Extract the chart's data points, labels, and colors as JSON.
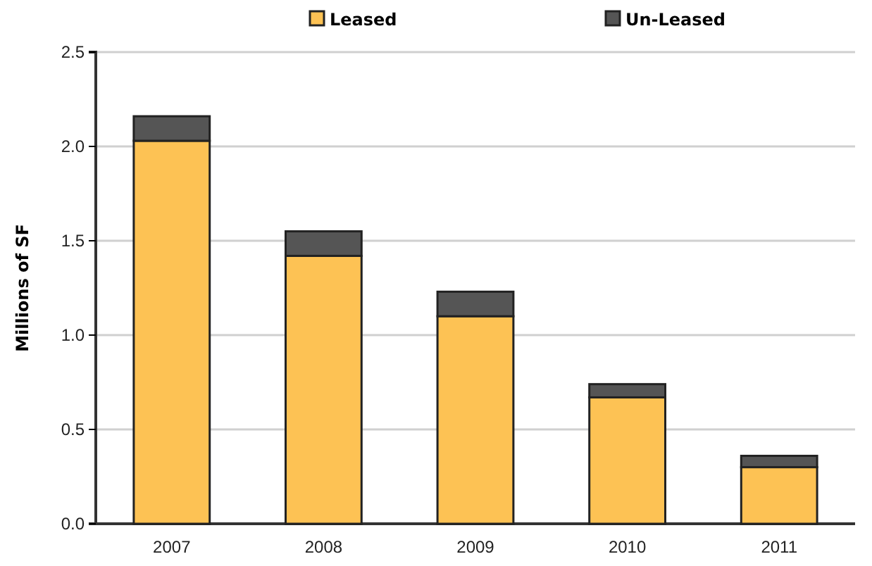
{
  "chart_data": {
    "type": "bar",
    "stacked": true,
    "ylabel": "Millions of SF",
    "categories": [
      "2007",
      "2008",
      "2009",
      "2010",
      "2011"
    ],
    "series": [
      {
        "name": "Leased",
        "color": "#fdc254",
        "values": [
          2.03,
          1.42,
          1.1,
          0.67,
          0.3
        ]
      },
      {
        "name": "Un-Leased",
        "color": "#555555",
        "values": [
          0.13,
          0.13,
          0.13,
          0.07,
          0.06
        ]
      }
    ],
    "ylim": [
      0,
      2.5
    ],
    "yticks": [
      {
        "value": 0,
        "label": "0.0"
      },
      {
        "value": 0.5,
        "label": "0.5"
      },
      {
        "value": 1,
        "label": "1.0"
      },
      {
        "value": 1.5,
        "label": "1.5"
      },
      {
        "value": 2,
        "label": "2.0"
      },
      {
        "value": 2.5,
        "label": "2.5"
      }
    ],
    "grid": "y",
    "legend": "top"
  }
}
